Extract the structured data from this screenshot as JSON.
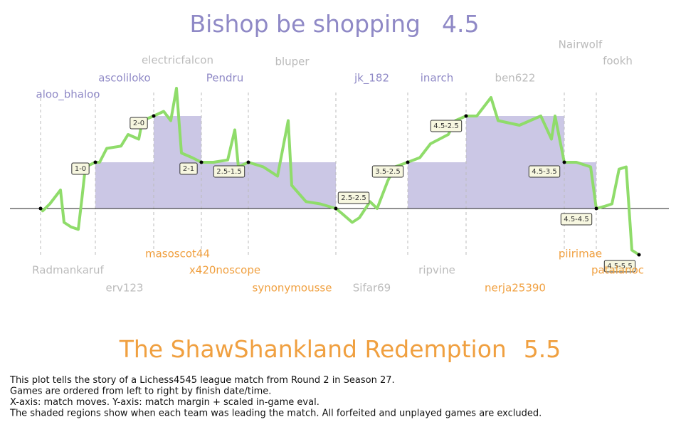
{
  "chart_data": {
    "type": "line",
    "teams": [
      {
        "name": "Bishop be shopping",
        "score": 4.5,
        "color": "#8f89c6"
      },
      {
        "name": "The ShawShankland Redemption",
        "score": 5.5,
        "color": "#f0a040"
      }
    ],
    "x": [
      0,
      3,
      13,
      28,
      33,
      43,
      53,
      58,
      63,
      77,
      83,
      93,
      113,
      123,
      138,
      143,
      159,
      173,
      183,
      191,
      198,
      213,
      226,
      243,
      263,
      273,
      278,
      292,
      313,
      333,
      348,
      353,
      373,
      393,
      415,
      423,
      438,
      448,
      463,
      473,
      488,
      498,
      516,
      533,
      548,
      573,
      583,
      598,
      613,
      633,
      643,
      673,
      703,
      718,
      723,
      736,
      753,
      773,
      781,
      793,
      803,
      813,
      823,
      831,
      841
    ],
    "values": [
      0,
      -0.05,
      0.1,
      0.4,
      -0.3,
      -0.4,
      -0.45,
      0.2,
      0.9,
      1.0,
      1.0,
      1.3,
      1.35,
      1.6,
      1.5,
      1.9,
      2.0,
      2.1,
      1.9,
      2.6,
      1.2,
      1.1,
      1.0,
      1.0,
      1.05,
      1.7,
      0.9,
      1.0,
      0.9,
      0.7,
      1.9,
      0.5,
      0.15,
      0.1,
      0,
      -0.1,
      -0.3,
      -0.2,
      0.15,
      0,
      0.6,
      0.9,
      1.0,
      1.1,
      1.4,
      1.6,
      1.9,
      2.0,
      2.0,
      2.4,
      1.9,
      1.8,
      2.0,
      1.5,
      2.0,
      1.0,
      1.0,
      0.9,
      0,
      0.05,
      0.1,
      0.85,
      0.9,
      -0.9,
      -1.0
    ],
    "color": "#8fdc6a",
    "shade_color": "#cbc7e5",
    "xlim": [
      -43,
      883
    ],
    "ylim": [
      -2,
      3
    ],
    "games": {
      "end_x": [
        77,
        159,
        226,
        292,
        415,
        516,
        598,
        736,
        781,
        841
      ],
      "lead": [
        1,
        2,
        1,
        1,
        0,
        1,
        2,
        1,
        0,
        -1
      ],
      "scores": [
        "1-0",
        "2-0",
        "2-1",
        "2.5-1.5",
        "2.5-2.5",
        "3.5-2.5",
        "4.5-2.5",
        "4.5-3.5",
        "4.5-4.5",
        "4.5-5.5"
      ],
      "top_players": [
        {
          "name": "aloo_bhaloo",
          "color": "#8f89c6"
        },
        {
          "name": "ascoliloko",
          "color": "#8f89c6"
        },
        {
          "name": "electricfalcon",
          "color": "#bbbbbb"
        },
        {
          "name": "Pendru",
          "color": "#8f89c6"
        },
        {
          "name": "bluper",
          "color": "#bbbbbb"
        },
        {
          "name": "jk_182",
          "color": "#8f89c6"
        },
        {
          "name": "inarch",
          "color": "#8f89c6"
        },
        {
          "name": "ben622",
          "color": "#bbbbbb"
        },
        {
          "name": "Nairwolf",
          "color": "#bbbbbb"
        },
        {
          "name": "fookh",
          "color": "#bbbbbb"
        }
      ],
      "bottom_players": [
        {
          "name": "Radmankaruf",
          "color": "#bbbbbb"
        },
        {
          "name": "erv123",
          "color": "#bbbbbb"
        },
        {
          "name": "masoscot44",
          "color": "#f0a040"
        },
        {
          "name": "x420noscope",
          "color": "#f0a040"
        },
        {
          "name": "synonymousse",
          "color": "#f0a040"
        },
        {
          "name": "Sifar69",
          "color": "#bbbbbb"
        },
        {
          "name": "ripvine",
          "color": "#bbbbbb"
        },
        {
          "name": "nerja25390",
          "color": "#f0a040"
        },
        {
          "name": "piirimae",
          "color": "#f0a040"
        },
        {
          "name": "patalanoc",
          "color": "#f0a040"
        }
      ]
    },
    "description": [
      "This plot tells the story of a Lichess4545 league match from Round 2 in Season 27.",
      "Games are ordered from left to right by finish date/time.",
      "X-axis: match moves. Y-axis: match margin + scaled in-game eval.",
      "The shaded regions show when each team was leading the match. All forfeited and unplayed games are excluded."
    ]
  }
}
